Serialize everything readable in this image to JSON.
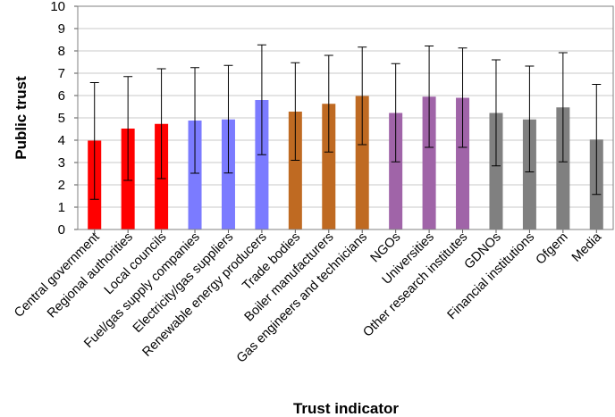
{
  "chart_data": {
    "type": "bar",
    "xlabel": "Trust indicator",
    "ylabel": "Public trust",
    "ylim": [
      0,
      10
    ],
    "yticks": [
      0,
      1,
      2,
      3,
      4,
      5,
      6,
      7,
      8,
      9,
      10
    ],
    "grid": true,
    "categories": [
      "Central government",
      "Regional authorities",
      "Local councils",
      "Fuel/gas supply companies",
      "Electricity/gas suppliers",
      "Renewable energy producers",
      "Trade bodies",
      "Boiler manufacturers",
      "Gas engineers and technicians",
      "NGOs",
      "Universities",
      "Other research institutes",
      "GDNOs",
      "Financial institutions",
      "Ofgem",
      "Media"
    ],
    "values": [
      3.98,
      4.52,
      4.73,
      4.88,
      4.93,
      5.8,
      5.28,
      5.63,
      5.98,
      5.22,
      5.95,
      5.9,
      5.22,
      4.93,
      5.47,
      4.03
    ],
    "error_low": [
      1.35,
      2.2,
      2.28,
      2.52,
      2.53,
      3.35,
      3.1,
      3.47,
      3.8,
      3.03,
      3.68,
      3.68,
      2.85,
      2.58,
      3.03,
      1.57
    ],
    "error_high": [
      6.58,
      6.85,
      7.2,
      7.25,
      7.35,
      8.27,
      7.47,
      7.8,
      8.17,
      7.43,
      8.22,
      8.13,
      7.6,
      7.32,
      7.92,
      6.5
    ],
    "colors": [
      "#ff0000",
      "#ff0000",
      "#ff0000",
      "#7b7bff",
      "#7b7bff",
      "#7b7bff",
      "#bf6a22",
      "#bf6a22",
      "#bf6a22",
      "#a064a8",
      "#a064a8",
      "#a064a8",
      "#808080",
      "#808080",
      "#808080",
      "#808080"
    ]
  }
}
